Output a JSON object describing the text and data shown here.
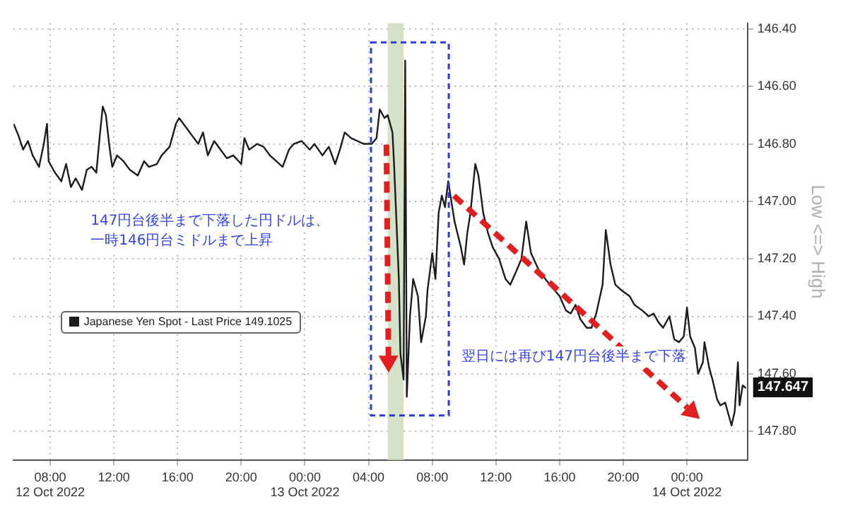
{
  "chart_data": {
    "type": "line",
    "ylabel": "Low <=> High",
    "legend": "left",
    "grid": true,
    "marker": "none",
    "line_style": "solid",
    "xlim": [
      "2022-10-12T05:42",
      "2022-10-14T03:48"
    ],
    "ylim": [
      147.9,
      146.38
    ],
    "xticks": [
      {
        "value": "2022-10-12T08:00",
        "label": "08:00\n12 Oct 2022"
      },
      {
        "value": "2022-10-12T12:00",
        "label": "12:00"
      },
      {
        "value": "2022-10-12T16:00",
        "label": "16:00"
      },
      {
        "value": "2022-10-12T20:00",
        "label": "20:00"
      },
      {
        "value": "2022-10-13T00:00",
        "label": "00:00\n13 Oct 2022"
      },
      {
        "value": "2022-10-13T04:00",
        "label": "04:00"
      },
      {
        "value": "2022-10-13T08:00",
        "label": "08:00"
      },
      {
        "value": "2022-10-13T12:00",
        "label": "12:00"
      },
      {
        "value": "2022-10-13T16:00",
        "label": "16:00"
      },
      {
        "value": "2022-10-13T20:00",
        "label": "20:00"
      },
      {
        "value": "2022-10-14T00:00",
        "label": "00:00\n14 Oct 2022"
      }
    ],
    "yticks": [
      {
        "value": 146.4,
        "label": "146.40"
      },
      {
        "value": 146.6,
        "label": "146.60"
      },
      {
        "value": 146.8,
        "label": "146.80"
      },
      {
        "value": 147,
        "label": "147.00"
      },
      {
        "value": 147.2,
        "label": "147.20"
      },
      {
        "value": 147.4,
        "label": "147.40"
      },
      {
        "value": 147.6,
        "label": "147.60"
      },
      {
        "value": 147.8,
        "label": "147.80"
      }
    ],
    "bands": [
      {
        "axis": "x",
        "from": "2022-10-13T05:12",
        "to": "2022-10-13T06:12",
        "color": "#d5e2c8"
      }
    ],
    "annotations": [
      "147円台後半まで下落した円ドルは、",
      "一時146円台ミドルまで上昇",
      "翌日には再び147円台後半まで下落",
      {
        "text": "147.647",
        "x": "2022-10-14T03:42",
        "y": 147.647
      }
    ],
    "series": [
      {
        "name": "Japanese Yen Spot - Last Price 149.1025",
        "color": "#1c1c1c",
        "x": [
          "2022-10-12T05:42",
          "2022-10-12T06:00",
          "2022-10-12T06:18",
          "2022-10-12T06:36",
          "2022-10-12T06:54",
          "2022-10-12T07:18",
          "2022-10-12T07:36",
          "2022-10-12T07:48",
          "2022-10-12T07:54",
          "2022-10-12T08:18",
          "2022-10-12T08:42",
          "2022-10-12T09:00",
          "2022-10-12T09:18",
          "2022-10-12T09:36",
          "2022-10-12T10:00",
          "2022-10-12T10:18",
          "2022-10-12T10:36",
          "2022-10-12T10:54",
          "2022-10-12T11:06",
          "2022-10-12T11:18",
          "2022-10-12T11:30",
          "2022-10-12T11:42",
          "2022-10-12T11:54",
          "2022-10-12T12:12",
          "2022-10-12T12:36",
          "2022-10-12T13:00",
          "2022-10-12T13:30",
          "2022-10-12T13:54",
          "2022-10-12T14:12",
          "2022-10-12T14:42",
          "2022-10-12T15:00",
          "2022-10-12T15:30",
          "2022-10-12T15:54",
          "2022-10-12T16:06",
          "2022-10-12T16:30",
          "2022-10-12T16:54",
          "2022-10-12T17:18",
          "2022-10-12T17:36",
          "2022-10-12T17:54",
          "2022-10-12T18:18",
          "2022-10-12T18:42",
          "2022-10-12T19:06",
          "2022-10-12T19:30",
          "2022-10-12T20:00",
          "2022-10-12T20:12",
          "2022-10-12T20:30",
          "2022-10-12T21:00",
          "2022-10-12T21:24",
          "2022-10-12T21:48",
          "2022-10-12T22:12",
          "2022-10-12T22:36",
          "2022-10-12T23:00",
          "2022-10-12T23:18",
          "2022-10-12T23:48",
          "2022-10-13T00:18",
          "2022-10-13T00:36",
          "2022-10-13T01:06",
          "2022-10-13T01:30",
          "2022-10-13T01:54",
          "2022-10-13T02:12",
          "2022-10-13T02:30",
          "2022-10-13T02:54",
          "2022-10-13T03:18",
          "2022-10-13T03:42",
          "2022-10-13T04:12",
          "2022-10-13T04:30",
          "2022-10-13T04:42",
          "2022-10-13T05:00",
          "2022-10-13T05:12",
          "2022-10-13T05:30",
          "2022-10-13T05:36",
          "2022-10-13T05:54",
          "2022-10-13T06:00",
          "2022-10-13T06:12",
          "2022-10-13T06:18",
          "2022-10-13T06:24",
          "2022-10-13T06:36",
          "2022-10-13T06:48",
          "2022-10-13T07:06",
          "2022-10-13T07:18",
          "2022-10-13T07:36",
          "2022-10-13T07:42",
          "2022-10-13T08:00",
          "2022-10-13T08:12",
          "2022-10-13T08:24",
          "2022-10-13T08:36",
          "2022-10-13T08:48",
          "2022-10-13T09:00",
          "2022-10-13T09:24",
          "2022-10-13T09:48",
          "2022-10-13T10:00",
          "2022-10-13T10:12",
          "2022-10-13T10:24",
          "2022-10-13T10:42",
          "2022-10-13T10:54",
          "2022-10-13T11:12",
          "2022-10-13T11:30",
          "2022-10-13T11:48",
          "2022-10-13T12:12",
          "2022-10-13T12:36",
          "2022-10-13T12:54",
          "2022-10-13T13:18",
          "2022-10-13T13:36",
          "2022-10-13T13:54",
          "2022-10-13T14:12",
          "2022-10-13T14:42",
          "2022-10-13T15:06",
          "2022-10-13T15:24",
          "2022-10-13T15:42",
          "2022-10-13T16:00",
          "2022-10-13T16:24",
          "2022-10-13T16:42",
          "2022-10-13T17:00",
          "2022-10-13T17:18",
          "2022-10-13T17:42",
          "2022-10-13T18:00",
          "2022-10-13T18:18",
          "2022-10-13T18:42",
          "2022-10-13T18:54",
          "2022-10-13T19:12",
          "2022-10-13T19:30",
          "2022-10-13T19:54",
          "2022-10-13T20:24",
          "2022-10-13T20:42",
          "2022-10-13T21:12",
          "2022-10-13T21:36",
          "2022-10-13T21:54",
          "2022-10-13T22:12",
          "2022-10-13T22:30",
          "2022-10-13T22:54",
          "2022-10-13T23:12",
          "2022-10-13T23:30",
          "2022-10-13T23:48",
          "2022-10-14T00:00",
          "2022-10-14T00:12",
          "2022-10-14T00:30",
          "2022-10-14T00:42",
          "2022-10-14T01:00",
          "2022-10-14T01:06",
          "2022-10-14T01:24",
          "2022-10-14T01:36",
          "2022-10-14T01:54",
          "2022-10-14T02:06",
          "2022-10-14T02:24",
          "2022-10-14T02:48",
          "2022-10-14T03:00",
          "2022-10-14T03:12",
          "2022-10-14T03:18",
          "2022-10-14T03:30",
          "2022-10-14T03:42"
        ],
        "values": [
          146.73,
          146.77,
          146.82,
          146.79,
          146.84,
          146.88,
          146.8,
          146.73,
          146.86,
          146.9,
          146.93,
          146.87,
          146.95,
          146.92,
          146.96,
          146.89,
          146.88,
          146.9,
          146.78,
          146.67,
          146.7,
          146.8,
          146.88,
          146.84,
          146.86,
          146.89,
          146.91,
          146.86,
          146.88,
          146.87,
          146.84,
          146.81,
          146.73,
          146.71,
          146.74,
          146.77,
          146.8,
          146.76,
          146.84,
          146.79,
          146.82,
          146.85,
          146.84,
          146.87,
          146.78,
          146.82,
          146.8,
          146.81,
          146.84,
          146.86,
          146.88,
          146.82,
          146.8,
          146.79,
          146.82,
          146.8,
          146.84,
          146.81,
          146.87,
          146.82,
          146.76,
          146.78,
          146.79,
          146.8,
          146.8,
          146.78,
          146.68,
          146.71,
          146.7,
          146.76,
          146.87,
          147.27,
          147.53,
          147.62,
          146.51,
          147.68,
          147.4,
          147.27,
          147.33,
          147.49,
          147.4,
          147.31,
          147.18,
          147.27,
          147.04,
          146.98,
          147.02,
          146.93,
          147.07,
          147.16,
          147.22,
          147.11,
          147.04,
          146.87,
          146.91,
          147.04,
          147.11,
          147.16,
          147.2,
          147.27,
          147.29,
          147.24,
          147.2,
          147.07,
          147.18,
          147.24,
          147.27,
          147.29,
          147.31,
          147.33,
          147.38,
          147.39,
          147.36,
          147.41,
          147.44,
          147.44,
          147.39,
          147.29,
          147.1,
          147.22,
          147.29,
          147.31,
          147.33,
          147.36,
          147.38,
          147.4,
          147.39,
          147.42,
          147.44,
          147.4,
          147.48,
          147.49,
          147.47,
          147.37,
          147.47,
          147.51,
          147.6,
          147.56,
          147.49,
          147.58,
          147.62,
          147.69,
          147.71,
          147.7,
          147.78,
          147.73,
          147.56,
          147.71,
          147.64,
          147.65
        ]
      }
    ]
  }
}
